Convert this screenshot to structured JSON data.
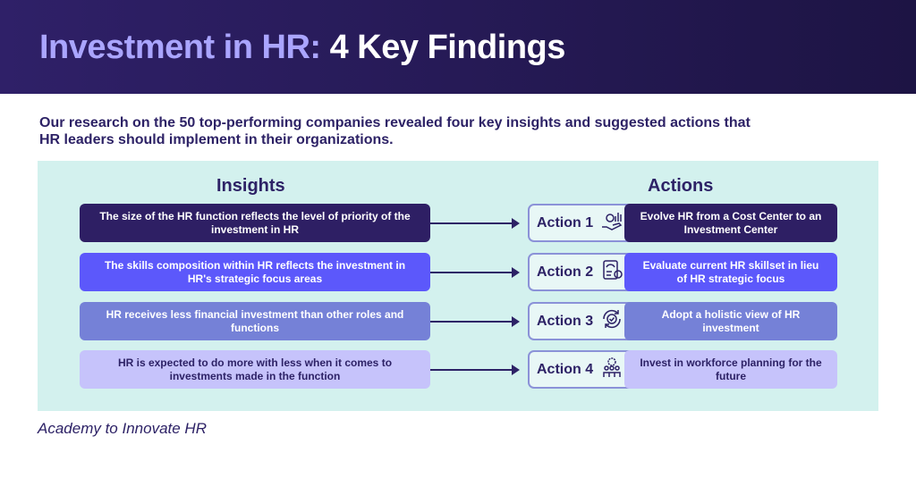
{
  "header": {
    "title_accent": "Investment in HR:",
    "title_rest": "4 Key Findings"
  },
  "intro": "Our research on the 50 top-performing companies revealed four key insights and suggested actions that HR leaders should implement in their organizations.",
  "columns": {
    "insights": "Insights",
    "actions": "Actions"
  },
  "rows": [
    {
      "insight": "The size of the HR function reflects the level of priority of the investment in HR",
      "label": "Action 1",
      "icon": "hand-money-chart-icon",
      "action": "Evolve HR from a Cost Center to an Investment Center",
      "color": "#2e1f64"
    },
    {
      "insight": "The skills composition within HR reflects the investment in HR's strategic focus areas",
      "label": "Action 2",
      "icon": "clipboard-gauge-icon",
      "action": "Evaluate current HR skillset in lieu of HR strategic focus",
      "color": "#5c58fb"
    },
    {
      "insight": "HR receives less financial investment than other roles and functions",
      "label": "Action 3",
      "icon": "refresh-check-icon",
      "action": "Adopt a holistic view of HR investment",
      "color": "#7581d7"
    },
    {
      "insight": "HR is expected to do more with less when it comes to investments made in the function",
      "label": "Action 4",
      "icon": "team-gear-icon",
      "action": "Invest in workforce planning for the future",
      "color": "#c6c3fb"
    }
  ],
  "footer": "Academy to Innovate HR"
}
